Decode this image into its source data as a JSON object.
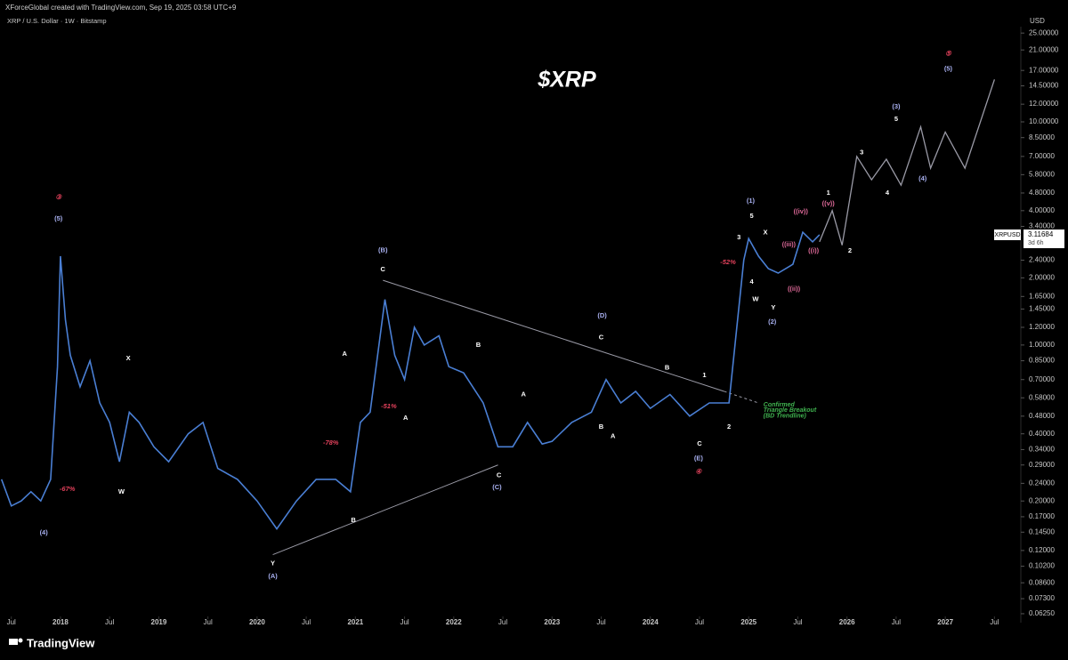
{
  "header": {
    "credit": "XForceGlobal created with TradingView.com, Sep 19, 2025 03:58 UTC+9",
    "symbol": "XRP / U.S. Dollar · 1W · Bitstamp",
    "brand": "TradingView"
  },
  "chart_data": {
    "type": "line",
    "title": "$XRP",
    "y_unit": "USD",
    "log_scale": true,
    "xlim": [
      2017.385,
      2027.75
    ],
    "ylim": [
      0.057,
      26.7
    ],
    "xticks": [
      {
        "value": 2017.5,
        "label": "Jul"
      },
      2018,
      {
        "value": 2018.5,
        "label": "Jul"
      },
      2019,
      {
        "value": 2019.5,
        "label": "Jul"
      },
      2020,
      {
        "value": 2020.5,
        "label": "Jul"
      },
      2021,
      {
        "value": 2021.5,
        "label": "Jul"
      },
      2022,
      {
        "value": 2022.5,
        "label": "Jul"
      },
      2023,
      {
        "value": 2023.5,
        "label": "Jul"
      },
      2024,
      {
        "value": 2024.5,
        "label": "Jul"
      },
      2025,
      {
        "value": 2025.5,
        "label": "Jul"
      },
      2026,
      {
        "value": 2026.5,
        "label": "Jul"
      },
      2027,
      {
        "value": 2027.5,
        "label": "Jul"
      }
    ],
    "yticks": [
      {
        "value": 25,
        "label": "25.00000"
      },
      {
        "value": 21,
        "label": "21.00000"
      },
      {
        "value": 17,
        "label": "17.00000"
      },
      {
        "value": 14.5,
        "label": "14.50000"
      },
      {
        "value": 12,
        "label": "12.00000"
      },
      {
        "value": 10,
        "label": "10.00000"
      },
      {
        "value": 8.5,
        "label": "8.50000"
      },
      {
        "value": 7,
        "label": "7.00000"
      },
      {
        "value": 5.8,
        "label": "5.80000"
      },
      {
        "value": 4.8,
        "label": "4.80000"
      },
      {
        "value": 4,
        "label": "4.00000"
      },
      {
        "value": 3.4,
        "label": "3.40000"
      },
      {
        "value": 2.4,
        "label": "2.40000"
      },
      {
        "value": 2,
        "label": "2.00000"
      },
      {
        "value": 1.65,
        "label": "1.65000"
      },
      {
        "value": 1.45,
        "label": "1.45000"
      },
      {
        "value": 1.2,
        "label": "1.20000"
      },
      {
        "value": 1,
        "label": "1.00000"
      },
      {
        "value": 0.85,
        "label": "0.85000"
      },
      {
        "value": 0.7,
        "label": "0.70000"
      },
      {
        "value": 0.58,
        "label": "0.58000"
      },
      {
        "value": 0.48,
        "label": "0.48000"
      },
      {
        "value": 0.4,
        "label": "0.40000"
      },
      {
        "value": 0.34,
        "label": "0.34000"
      },
      {
        "value": 0.29,
        "label": "0.29000"
      },
      {
        "value": 0.24,
        "label": "0.24000"
      },
      {
        "value": 0.2,
        "label": "0.20000"
      },
      {
        "value": 0.17,
        "label": "0.17000"
      },
      {
        "value": 0.145,
        "label": "0.14500"
      },
      {
        "value": 0.12,
        "label": "0.12000"
      },
      {
        "value": 0.102,
        "label": "0.10200"
      },
      {
        "value": 0.086,
        "label": "0.08600"
      },
      {
        "value": 0.073,
        "label": "0.07300"
      },
      {
        "value": 0.0625,
        "label": "0.06250"
      }
    ],
    "series": [
      {
        "name": "XRPUSD",
        "color": "#4a7fd4",
        "x": [
          2017.4,
          2017.5,
          2017.6,
          2017.7,
          2017.8,
          2017.9,
          2017.97,
          2018.0,
          2018.05,
          2018.1,
          2018.2,
          2018.3,
          2018.4,
          2018.5,
          2018.6,
          2018.7,
          2018.8,
          2018.95,
          2019.1,
          2019.3,
          2019.45,
          2019.6,
          2019.8,
          2020.0,
          2020.2,
          2020.4,
          2020.6,
          2020.8,
          2020.95,
          2021.05,
          2021.15,
          2021.3,
          2021.4,
          2021.5,
          2021.6,
          2021.7,
          2021.85,
          2021.95,
          2022.1,
          2022.3,
          2022.45,
          2022.6,
          2022.75,
          2022.9,
          2023.0,
          2023.2,
          2023.4,
          2023.55,
          2023.7,
          2023.85,
          2024.0,
          2024.2,
          2024.4,
          2024.6,
          2024.8,
          2024.87,
          2024.95,
          2025.0,
          2025.1,
          2025.2,
          2025.3,
          2025.45,
          2025.55,
          2025.65,
          2025.72
        ],
        "values": [
          0.25,
          0.19,
          0.2,
          0.22,
          0.2,
          0.25,
          0.8,
          2.5,
          1.3,
          0.9,
          0.65,
          0.85,
          0.55,
          0.45,
          0.3,
          0.5,
          0.45,
          0.35,
          0.3,
          0.4,
          0.45,
          0.28,
          0.25,
          0.2,
          0.15,
          0.2,
          0.25,
          0.25,
          0.22,
          0.45,
          0.5,
          1.6,
          0.9,
          0.7,
          1.2,
          1.0,
          1.1,
          0.8,
          0.75,
          0.55,
          0.35,
          0.35,
          0.45,
          0.36,
          0.37,
          0.45,
          0.5,
          0.7,
          0.55,
          0.62,
          0.52,
          0.6,
          0.48,
          0.55,
          0.55,
          1.1,
          2.4,
          3.0,
          2.5,
          2.2,
          2.1,
          2.3,
          3.2,
          2.9,
          3.12
        ]
      },
      {
        "color": "#9a9aa6",
        "x": [
          2025.72,
          2025.85,
          2025.95,
          2026.1,
          2026.25,
          2026.4,
          2026.55,
          2026.75,
          2026.85,
          2027.0,
          2027.2,
          2027.5
        ],
        "values": [
          2.9,
          4.0,
          2.8,
          7.0,
          5.5,
          6.8,
          5.2,
          9.5,
          6.2,
          9.0,
          6.2,
          15.5
        ]
      }
    ],
    "last_price": 3.11684,
    "countdown": "3d 6h",
    "trendlines": [
      {
        "color": "#9a9aa6",
        "dashed": false,
        "x": [
          2021.28,
          2024.75
        ],
        "y": [
          1.95,
          0.62
        ]
      },
      {
        "color": "#9a9aa6",
        "dashed": true,
        "x": [
          2024.75,
          2025.1
        ],
        "y": [
          0.62,
          0.55
        ]
      },
      {
        "color": "#9a9aa6",
        "dashed": false,
        "x": [
          2020.16,
          2022.45
        ],
        "y": [
          0.115,
          0.29
        ]
      }
    ],
    "annotations": [
      {
        "text": "③",
        "x": 2017.98,
        "y": 4.58,
        "color": "#e0405a"
      },
      {
        "text": "(5)",
        "x": 2017.98,
        "y": 3.68,
        "color": "#a8b0f0"
      },
      {
        "text": "(4)",
        "x": 2017.83,
        "y": 0.144,
        "color": "#a8b0f0"
      },
      {
        "text": "-67%",
        "x": 2018.07,
        "y": 0.226,
        "color": "#e0405a"
      },
      {
        "text": "X",
        "x": 2018.69,
        "y": 0.87,
        "color": "#ffffff"
      },
      {
        "text": "W",
        "x": 2018.62,
        "y": 0.22,
        "color": "#ffffff"
      },
      {
        "text": "Y",
        "x": 2020.16,
        "y": 0.105,
        "color": "#ffffff"
      },
      {
        "text": "(A)",
        "x": 2020.16,
        "y": 0.092,
        "color": "#a8b0f0"
      },
      {
        "text": "B",
        "x": 2020.98,
        "y": 0.164,
        "color": "#ffffff"
      },
      {
        "text": "A",
        "x": 2020.89,
        "y": 0.91,
        "color": "#ffffff"
      },
      {
        "text": "-78%",
        "x": 2020.75,
        "y": 0.364,
        "color": "#e0405a"
      },
      {
        "text": "(B)",
        "x": 2021.28,
        "y": 2.66,
        "color": "#a8b0f0"
      },
      {
        "text": "C",
        "x": 2021.28,
        "y": 2.18,
        "color": "#ffffff"
      },
      {
        "text": "-51%",
        "x": 2021.34,
        "y": 0.53,
        "color": "#e0405a"
      },
      {
        "text": "A",
        "x": 2021.51,
        "y": 0.47,
        "color": "#ffffff"
      },
      {
        "text": "B",
        "x": 2022.25,
        "y": 1.0,
        "color": "#ffffff"
      },
      {
        "text": "C",
        "x": 2022.46,
        "y": 0.26,
        "color": "#ffffff"
      },
      {
        "text": "(C)",
        "x": 2022.44,
        "y": 0.23,
        "color": "#a8b0f0"
      },
      {
        "text": "A",
        "x": 2022.71,
        "y": 0.6,
        "color": "#ffffff"
      },
      {
        "text": "(D)",
        "x": 2023.51,
        "y": 1.35,
        "color": "#a8b0f0"
      },
      {
        "text": "C",
        "x": 2023.5,
        "y": 1.08,
        "color": "#ffffff"
      },
      {
        "text": "B",
        "x": 2023.5,
        "y": 0.43,
        "color": "#ffffff"
      },
      {
        "text": "A",
        "x": 2023.62,
        "y": 0.39,
        "color": "#ffffff"
      },
      {
        "text": "B",
        "x": 2024.17,
        "y": 0.79,
        "color": "#ffffff"
      },
      {
        "text": "1",
        "x": 2024.55,
        "y": 0.73,
        "color": "#ffffff"
      },
      {
        "text": "C",
        "x": 2024.5,
        "y": 0.36,
        "color": "#ffffff"
      },
      {
        "text": "2",
        "x": 2024.8,
        "y": 0.43,
        "color": "#ffffff"
      },
      {
        "text": "(E)",
        "x": 2024.49,
        "y": 0.31,
        "color": "#a8b0f0"
      },
      {
        "text": "④",
        "x": 2024.49,
        "y": 0.27,
        "color": "#e0405a"
      },
      {
        "text": "Confirmed",
        "x": 2025.15,
        "y": 0.54,
        "color": "#3fb24f"
      },
      {
        "text": "Triangle Breakout",
        "x": 2025.15,
        "y": 0.51,
        "color": "#3fb24f"
      },
      {
        "text": "(BD Trendline)",
        "x": 2025.15,
        "y": 0.48,
        "color": "#3fb24f"
      },
      {
        "text": "-52%",
        "x": 2024.79,
        "y": 2.34,
        "color": "#e0405a"
      },
      {
        "text": "(1)",
        "x": 2025.02,
        "y": 4.41,
        "color": "#a8b0f0"
      },
      {
        "text": "5",
        "x": 2025.03,
        "y": 3.78,
        "color": "#ffffff"
      },
      {
        "text": "3",
        "x": 2024.9,
        "y": 3.03,
        "color": "#ffffff"
      },
      {
        "text": "X",
        "x": 2025.17,
        "y": 3.19,
        "color": "#ffffff"
      },
      {
        "text": "4",
        "x": 2025.03,
        "y": 1.92,
        "color": "#ffffff"
      },
      {
        "text": "W",
        "x": 2025.07,
        "y": 1.6,
        "color": "#ffffff"
      },
      {
        "text": "Y",
        "x": 2025.25,
        "y": 1.47,
        "color": "#ffffff"
      },
      {
        "text": "(2)",
        "x": 2025.24,
        "y": 1.27,
        "color": "#a8b0f0"
      },
      {
        "text": "((iv))",
        "x": 2025.53,
        "y": 3.96,
        "color": "#e06a9a"
      },
      {
        "text": "((iii))",
        "x": 2025.34,
        "y": 2.82,
        "color": "#e06a9a"
      },
      {
        "text": "((ii))",
        "x": 2025.46,
        "y": 1.78,
        "color": "#e06a9a"
      },
      {
        "text": "((i))",
        "x": 2025.66,
        "y": 2.64,
        "color": "#e06a9a"
      },
      {
        "text": "((v))",
        "x": 2025.81,
        "y": 4.3,
        "color": "#e06a9a"
      },
      {
        "text": "1",
        "x": 2025.81,
        "y": 4.8,
        "color": "#ffffff"
      },
      {
        "text": "2",
        "x": 2026.03,
        "y": 2.64,
        "color": "#ffffff"
      },
      {
        "text": "3",
        "x": 2026.15,
        "y": 7.3,
        "color": "#ffffff"
      },
      {
        "text": "4",
        "x": 2026.41,
        "y": 4.8,
        "color": "#ffffff"
      },
      {
        "text": "(3)",
        "x": 2026.5,
        "y": 11.7,
        "color": "#a8b0f0"
      },
      {
        "text": "5",
        "x": 2026.5,
        "y": 10.3,
        "color": "#ffffff"
      },
      {
        "text": "(4)",
        "x": 2026.77,
        "y": 5.55,
        "color": "#a8b0f0"
      },
      {
        "text": "⑤",
        "x": 2027.03,
        "y": 20.2,
        "color": "#e0405a"
      },
      {
        "text": "(5)",
        "x": 2027.03,
        "y": 17.3,
        "color": "#a8b0f0"
      }
    ]
  }
}
